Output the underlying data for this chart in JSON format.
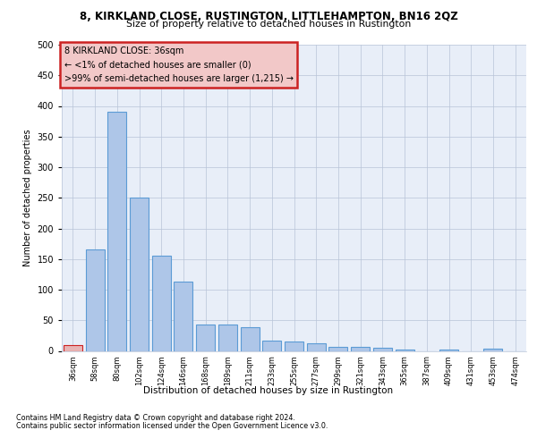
{
  "title": "8, KIRKLAND CLOSE, RUSTINGTON, LITTLEHAMPTON, BN16 2QZ",
  "subtitle": "Size of property relative to detached houses in Rustington",
  "xlabel": "Distribution of detached houses by size in Rustington",
  "ylabel": "Number of detached properties",
  "categories": [
    "36sqm",
    "58sqm",
    "80sqm",
    "102sqm",
    "124sqm",
    "146sqm",
    "168sqm",
    "189sqm",
    "211sqm",
    "233sqm",
    "255sqm",
    "277sqm",
    "299sqm",
    "321sqm",
    "343sqm",
    "365sqm",
    "387sqm",
    "409sqm",
    "431sqm",
    "453sqm",
    "474sqm"
  ],
  "values": [
    10,
    165,
    390,
    250,
    155,
    113,
    43,
    43,
    38,
    17,
    15,
    13,
    7,
    6,
    5,
    2,
    0,
    2,
    0,
    3,
    0
  ],
  "bar_color": "#aec6e8",
  "bar_edge_color": "#5b9bd5",
  "highlight_index": 0,
  "highlight_bar_color": "#e8b4b4",
  "highlight_bar_edge": "#cc2222",
  "annotation_box_text": "8 KIRKLAND CLOSE: 36sqm\n← <1% of detached houses are smaller (0)\n>99% of semi-detached houses are larger (1,215) →",
  "annotation_box_color": "#f2c8c8",
  "annotation_box_edge": "#cc2222",
  "ylim": [
    0,
    500
  ],
  "yticks": [
    0,
    50,
    100,
    150,
    200,
    250,
    300,
    350,
    400,
    450,
    500
  ],
  "bg_color": "#e8eef8",
  "footer_line1": "Contains HM Land Registry data © Crown copyright and database right 2024.",
  "footer_line2": "Contains public sector information licensed under the Open Government Licence v3.0."
}
